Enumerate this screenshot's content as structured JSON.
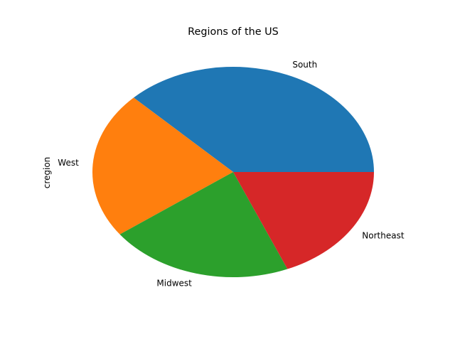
{
  "chart_data": {
    "type": "pie",
    "title": "Regions of the US",
    "ylabel": "cregion",
    "categories": [
      "South",
      "West",
      "Midwest",
      "Northeast"
    ],
    "values": [
      37.5,
      22.6,
      21.2,
      18.7
    ],
    "colors": [
      "#1f77b4",
      "#ff7f0e",
      "#2ca02c",
      "#d62728"
    ],
    "start_angle_deg": 0,
    "direction": "counterclockwise",
    "legend": "none"
  }
}
